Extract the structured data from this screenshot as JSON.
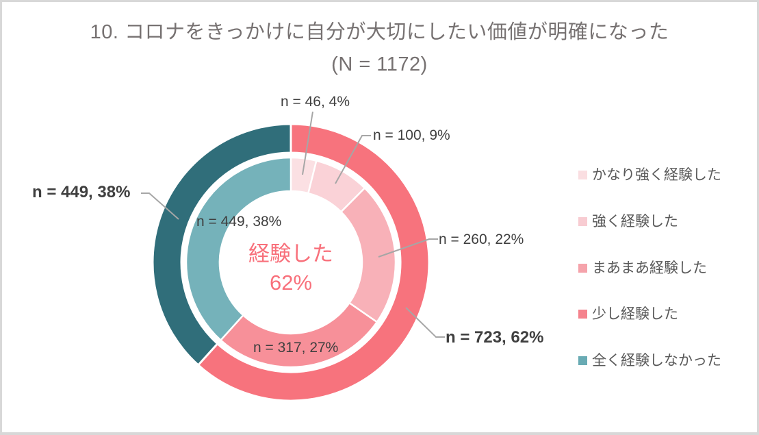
{
  "chart_data": {
    "type": "donut-nested",
    "title": "10. コロナをきっかけに自分が大切にしたい価値が明確になった",
    "subtitle": "(N = 1172)",
    "total": 1172,
    "start_angle_deg": 0,
    "direction": "clockwise",
    "inner_series": {
      "categories": [
        "かなり強く経験した",
        "強く経験した",
        "まあまあ経験した",
        "少し経験した",
        "全く経験しなかった"
      ],
      "values": [
        46,
        100,
        260,
        317,
        449
      ],
      "percents": [
        4,
        9,
        22,
        27,
        38
      ],
      "colors": [
        "#FBE0E3",
        "#FAD2D7",
        "#F8B1B8",
        "#F79099",
        "#75B2BA"
      ],
      "labels": [
        "n = 46, 4%",
        "n = 100, 9%",
        "n = 260, 22%",
        "n = 317, 27%",
        "n = 449, 38%"
      ]
    },
    "outer_series": {
      "categories": [
        "経験した",
        "全く経験しなかった"
      ],
      "values": [
        723,
        449
      ],
      "percents": [
        62,
        38
      ],
      "colors": [
        "#F7737D",
        "#306E7A"
      ],
      "labels": [
        "n = 723, 62%",
        "n = 449, 38%"
      ]
    },
    "center_label": {
      "line1": "経験した",
      "line2": "62%"
    },
    "legend": {
      "position": "right",
      "items": [
        {
          "label": "かなり強く経験した",
          "color": "#FADEE1"
        },
        {
          "label": "強く経験した",
          "color": "#F8CCD2"
        },
        {
          "label": "まあまあ経験した",
          "color": "#F5A3AB"
        },
        {
          "label": "少し経験した",
          "color": "#F5838D"
        },
        {
          "label": "全く経験しなかった",
          "color": "#69ABB4"
        }
      ]
    }
  }
}
